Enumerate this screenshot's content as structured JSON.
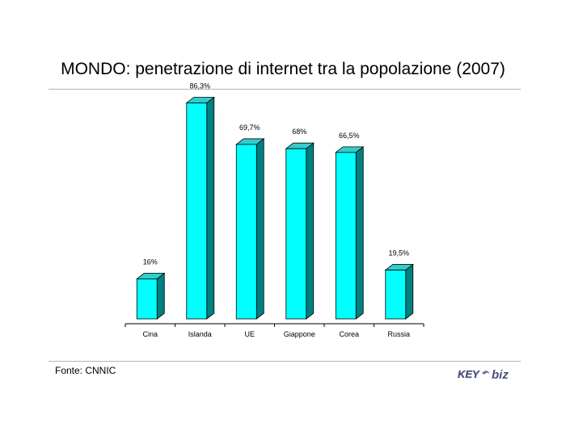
{
  "title": "MONDO: penetrazione di internet tra la popolazione (2007)",
  "source": "Fonte: CNNIC",
  "logo": {
    "text_key": "KEY",
    "text_biz": "biz",
    "colors": [
      "#4a4f7a",
      "#6f7499"
    ]
  },
  "chart_data": {
    "type": "bar",
    "style": "3d",
    "categories": [
      "Cina",
      "Islanda",
      "UE",
      "Giappone",
      "Corea",
      "Russia"
    ],
    "values": [
      16,
      86.3,
      69.7,
      68,
      66.5,
      19.5
    ],
    "data_labels": [
      "16%",
      "86,3%",
      "69,7%",
      "68%",
      "66,5%",
      "19,5%"
    ],
    "title": "",
    "xlabel": "",
    "ylabel": "",
    "ylim": [
      0,
      100
    ],
    "grid": false,
    "legend": "none",
    "colors": {
      "front": "#00ffff",
      "side": "#008080",
      "top": "#33cccc",
      "outline": "#000000"
    }
  }
}
